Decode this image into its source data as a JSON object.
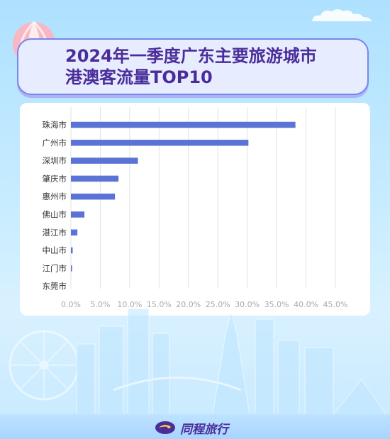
{
  "title_line1": "2024年一季度广东主要旅游城市",
  "title_line2": "港澳客流量TOP10",
  "brand": "同程旅行",
  "colors": {
    "bar": "#5b73d6",
    "title": "#4a2d9a",
    "grid": "#e3e3e3",
    "tick": "#a9a9a9"
  },
  "chart_data": {
    "type": "bar",
    "orientation": "horizontal",
    "title": "2024年一季度广东主要旅游城市港澳客流量TOP10",
    "xlabel": "",
    "ylabel": "",
    "categories": [
      "珠海市",
      "广州市",
      "深圳市",
      "肇庆市",
      "惠州市",
      "佛山市",
      "湛江市",
      "中山市",
      "江门市",
      "东莞市"
    ],
    "values": [
      38.2,
      30.2,
      11.4,
      8.1,
      7.5,
      2.3,
      1.1,
      0.3,
      0.2,
      0.0
    ],
    "xlim": [
      0,
      45
    ],
    "xticks": [
      "0.0%",
      "5.0%",
      "10.0%",
      "15.0%",
      "20.0%",
      "25.0%",
      "30.0%",
      "35.0%",
      "40.0%",
      "45.0%"
    ],
    "grid": "vertical",
    "legend": "none"
  }
}
